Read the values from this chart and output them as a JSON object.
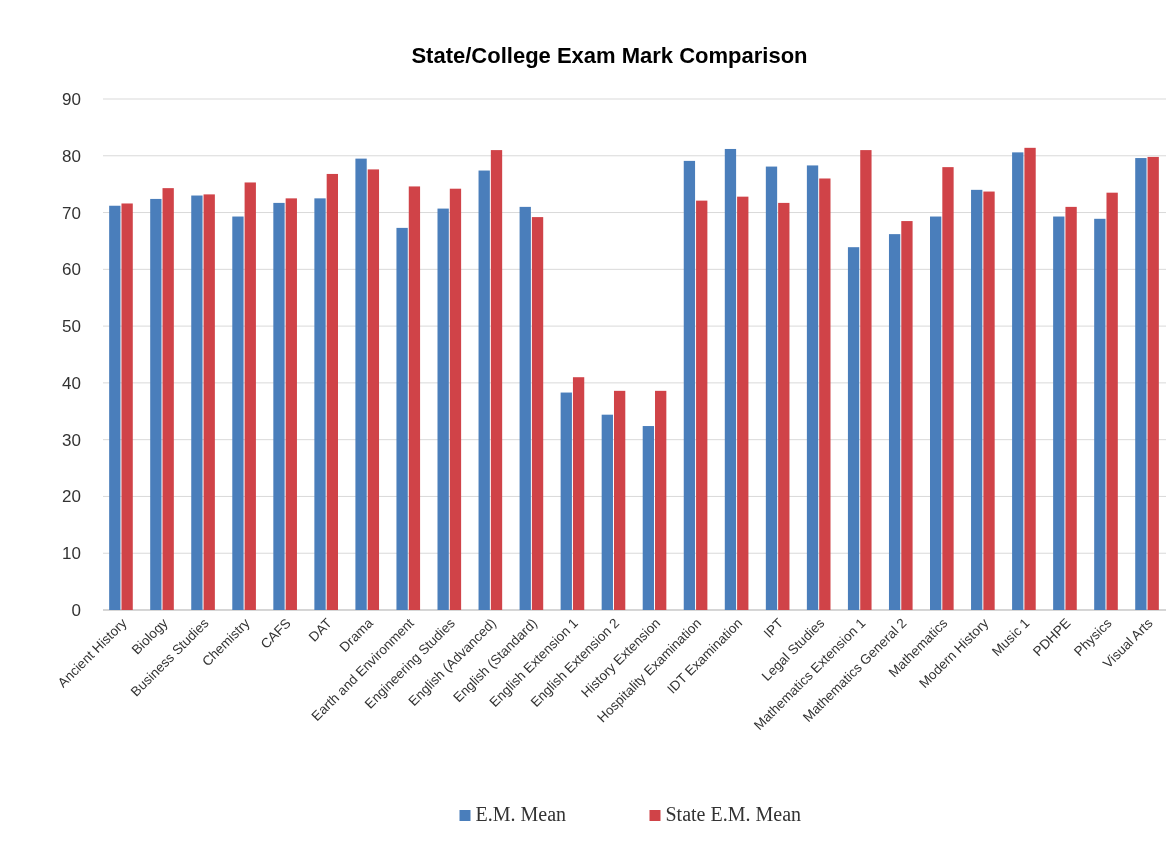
{
  "chart_data": {
    "type": "bar",
    "title": "State/College Exam Mark Comparison",
    "categories": [
      "Ancient History",
      "Biology",
      "Business Studies",
      "Chemistry",
      "CAFS",
      "DAT",
      "Drama",
      "Earth and Environment",
      "Engineering Studies",
      "English (Advanced)",
      "English (Standard)",
      "English Extension 1",
      "English Extension 2",
      "History Extension",
      "Hospitality Examination",
      "IDT Examination",
      "IPT",
      "Legal Studies",
      "Mathematics Extension 1",
      "Mathematics General 2",
      "Mathematics",
      "Modern History",
      "Music 1",
      "PDHPE",
      "Physics",
      "Visual Arts"
    ],
    "series": [
      {
        "name": "E.M. Mean",
        "color": "#4a7ebb",
        "values": [
          71.2,
          72.4,
          73.0,
          69.3,
          71.7,
          72.5,
          79.5,
          67.3,
          70.7,
          77.4,
          71.0,
          38.3,
          34.4,
          32.4,
          79.1,
          81.2,
          78.1,
          78.3,
          63.9,
          66.2,
          69.3,
          74.0,
          80.6,
          69.3,
          68.9,
          79.6
        ]
      },
      {
        "name": "State E.M. Mean",
        "color": "#d04348",
        "values": [
          71.6,
          74.3,
          73.2,
          75.3,
          72.5,
          76.8,
          77.6,
          74.6,
          74.2,
          81.0,
          69.2,
          41.0,
          38.6,
          38.6,
          72.1,
          72.8,
          71.7,
          76.0,
          81.0,
          68.5,
          78.0,
          73.7,
          81.4,
          71.0,
          73.5,
          79.8
        ]
      }
    ],
    "ylim": [
      0,
      90
    ],
    "yticks": [
      0,
      10,
      20,
      30,
      40,
      50,
      60,
      70,
      80,
      90
    ],
    "grid": "y",
    "legend": "bottom"
  }
}
